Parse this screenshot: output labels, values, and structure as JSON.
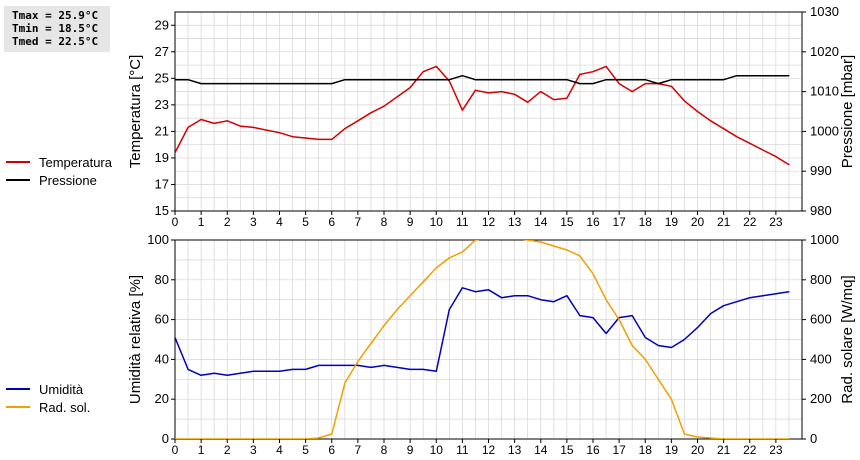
{
  "stats": {
    "tmax": "Tmax = 25.9°C",
    "tmin": "Tmin = 18.5°C",
    "tmed": "Tmed = 22.5°C"
  },
  "colors": {
    "temperature": "#d40000",
    "pressure": "#000000",
    "humidity": "#0000c0",
    "radiation": "#f0a000",
    "grid": "#d4d4d4"
  },
  "chart_data": [
    {
      "type": "line",
      "xlim": [
        0,
        24
      ],
      "xticks": [
        "0",
        "1",
        "2",
        "3",
        "4",
        "5",
        "6",
        "7",
        "8",
        "9",
        "10",
        "11",
        "12",
        "13",
        "14",
        "15",
        "16",
        "17",
        "18",
        "19",
        "20",
        "21",
        "22",
        "23"
      ],
      "ylabel_left": "Temperatura [°C]",
      "ylabel_right": "Pressione [mbar]",
      "ylim_left": [
        15,
        30
      ],
      "yticks_left": [
        "15",
        "17",
        "19",
        "21",
        "23",
        "25",
        "27",
        "29"
      ],
      "ylim_right": [
        980,
        1030
      ],
      "yticks_right": [
        "980",
        "990",
        "1000",
        "1010",
        "1020",
        "1030"
      ],
      "legend": [
        "Temperatura",
        "Pressione"
      ],
      "series": [
        {
          "name": "Temperatura",
          "axis": "left",
          "color": "#d40000",
          "x": [
            0,
            0.5,
            1,
            1.5,
            2,
            2.5,
            3,
            3.5,
            4,
            4.5,
            5,
            5.5,
            6,
            6.5,
            7,
            7.5,
            8,
            8.5,
            9,
            9.5,
            10,
            10.5,
            11,
            11.5,
            12,
            12.5,
            13,
            13.5,
            14,
            14.5,
            15,
            15.5,
            16,
            16.5,
            17,
            17.5,
            18,
            18.5,
            19,
            19.5,
            20,
            20.5,
            21,
            21.5,
            22,
            22.5,
            23,
            23.5
          ],
          "y": [
            19.4,
            21.3,
            21.9,
            21.6,
            21.8,
            21.4,
            21.3,
            21.1,
            20.9,
            20.6,
            20.5,
            20.4,
            20.4,
            21.2,
            21.8,
            22.4,
            22.9,
            23.6,
            24.3,
            25.5,
            25.9,
            24.8,
            22.6,
            24.1,
            23.9,
            24.0,
            23.8,
            23.2,
            24.0,
            23.4,
            23.5,
            25.3,
            25.5,
            25.9,
            24.6,
            24.0,
            24.6,
            24.6,
            24.4,
            23.3,
            22.5,
            21.8,
            21.2,
            20.6,
            20.1,
            19.6,
            19.1,
            18.5
          ]
        },
        {
          "name": "Pressione",
          "axis": "right",
          "color": "#000000",
          "x": [
            0,
            0.5,
            1,
            1.5,
            2,
            2.5,
            3,
            3.5,
            4,
            4.5,
            5,
            5.5,
            6,
            6.5,
            7,
            7.5,
            8,
            8.5,
            9,
            9.5,
            10,
            10.5,
            11,
            11.5,
            12,
            12.5,
            13,
            13.5,
            14,
            14.5,
            15,
            15.5,
            16,
            16.5,
            17,
            17.5,
            18,
            18.5,
            19,
            19.5,
            20,
            20.5,
            21,
            21.5,
            22,
            22.5,
            23,
            23.5
          ],
          "y": [
            1013,
            1013,
            1012,
            1012,
            1012,
            1012,
            1012,
            1012,
            1012,
            1012,
            1012,
            1012,
            1012,
            1013,
            1013,
            1013,
            1013,
            1013,
            1013,
            1013,
            1013,
            1013,
            1014,
            1013,
            1013,
            1013,
            1013,
            1013,
            1013,
            1013,
            1013,
            1012,
            1012,
            1013,
            1013,
            1013,
            1013,
            1012,
            1013,
            1013,
            1013,
            1013,
            1013,
            1014,
            1014,
            1014,
            1014,
            1014
          ]
        }
      ]
    },
    {
      "type": "line",
      "xlim": [
        0,
        24
      ],
      "xticks": [
        "0",
        "1",
        "2",
        "3",
        "4",
        "5",
        "6",
        "7",
        "8",
        "9",
        "10",
        "11",
        "12",
        "13",
        "14",
        "15",
        "16",
        "17",
        "18",
        "19",
        "20",
        "21",
        "22",
        "23"
      ],
      "ylabel_left": "Umidità relativa [%]",
      "ylabel_right": "Rad. solare [W/mq]",
      "ylim_left": [
        0,
        100
      ],
      "yticks_left": [
        "0",
        "20",
        "40",
        "60",
        "80",
        "100"
      ],
      "ylim_right": [
        0,
        1000
      ],
      "yticks_right": [
        "0",
        "200",
        "400",
        "600",
        "800",
        "1000"
      ],
      "legend": [
        "Umidità",
        "Rad. sol."
      ],
      "series": [
        {
          "name": "Umidità",
          "axis": "left",
          "color": "#0000c0",
          "x": [
            0,
            0.5,
            1,
            1.5,
            2,
            2.5,
            3,
            3.5,
            4,
            4.5,
            5,
            5.5,
            6,
            6.5,
            7,
            7.5,
            8,
            8.5,
            9,
            9.5,
            10,
            10.5,
            11,
            11.5,
            12,
            12.5,
            13,
            13.5,
            14,
            14.5,
            15,
            15.5,
            16,
            16.5,
            17,
            17.5,
            18,
            18.5,
            19,
            19.5,
            20,
            20.5,
            21,
            21.5,
            22,
            22.5,
            23,
            23.5
          ],
          "y": [
            51,
            35,
            32,
            33,
            32,
            33,
            34,
            34,
            34,
            35,
            35,
            37,
            37,
            37,
            37,
            36,
            37,
            36,
            35,
            35,
            34,
            65,
            76,
            74,
            75,
            71,
            72,
            72,
            70,
            69,
            72,
            62,
            61,
            53,
            61,
            62,
            51,
            47,
            46,
            50,
            56,
            63,
            67,
            69,
            71,
            72,
            73,
            74
          ]
        },
        {
          "name": "Rad. sol.",
          "axis": "right",
          "color": "#f0a000",
          "x": [
            0,
            1,
            2,
            3,
            4,
            5,
            5.5,
            6,
            6.5,
            7,
            7.5,
            8,
            8.5,
            9,
            9.5,
            10,
            10.5,
            11,
            11.5,
            12,
            12.5,
            13,
            13.5,
            14,
            14.5,
            15,
            15.5,
            16,
            16.5,
            17,
            17.5,
            18,
            18.5,
            19,
            19.5,
            20,
            21,
            22,
            23,
            23.5
          ],
          "y": [
            0,
            0,
            0,
            0,
            0,
            0,
            5,
            25,
            280,
            390,
            480,
            570,
            650,
            720,
            790,
            860,
            910,
            940,
            1000,
            1010,
            1020,
            1010,
            1000,
            990,
            970,
            950,
            920,
            830,
            700,
            600,
            470,
            400,
            300,
            200,
            25,
            10,
            0,
            0,
            0,
            0
          ]
        }
      ]
    }
  ]
}
